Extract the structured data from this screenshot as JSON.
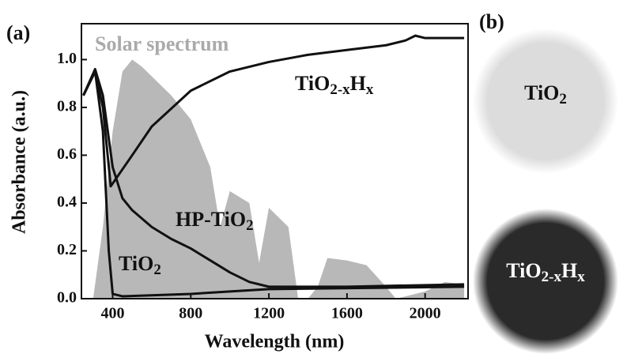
{
  "chart_data": {
    "type": "line",
    "panel_label": "(a)",
    "x_label": "Wavelength (nm)",
    "y_label": "Absorbance (a.u.)",
    "xlim": [
      240,
      2220
    ],
    "ylim": [
      0,
      1.15
    ],
    "xticks": [
      400,
      800,
      1200,
      1600,
      2000
    ],
    "yticks": [
      {
        "value": 0,
        "label": "0.0"
      },
      {
        "value": 0.2,
        "label": "0.2"
      },
      {
        "value": 0.4,
        "label": "0.4"
      },
      {
        "value": 0.6,
        "label": "0.6"
      },
      {
        "value": 0.8,
        "label": "0.8"
      },
      {
        "value": 1.0,
        "label": "1.0"
      }
    ],
    "series": [
      {
        "name": "Solar spectrum",
        "kind": "area",
        "color": "#b8b8b8",
        "x": [
          300,
          350,
          400,
          450,
          500,
          550,
          600,
          700,
          800,
          900,
          950,
          1000,
          1100,
          1150,
          1200,
          1300,
          1350,
          1400,
          1450,
          1500,
          1600,
          1700,
          1800,
          1850,
          2000,
          2100,
          2200
        ],
        "values": [
          0,
          0.3,
          0.7,
          0.95,
          1.0,
          0.97,
          0.93,
          0.85,
          0.75,
          0.55,
          0.3,
          0.45,
          0.4,
          0.15,
          0.38,
          0.3,
          0,
          0,
          0.05,
          0.17,
          0.16,
          0.14,
          0.05,
          0,
          0.03,
          0.07,
          0.06
        ]
      },
      {
        "name_parts": [
          "TiO",
          "2-x",
          "H",
          "x"
        ],
        "kind": "line",
        "color": "#111111",
        "x": [
          250,
          310,
          350,
          390,
          500,
          600,
          800,
          1000,
          1200,
          1400,
          1600,
          1800,
          1900,
          1950,
          2000,
          2200
        ],
        "values": [
          0.85,
          0.95,
          0.8,
          0.47,
          0.6,
          0.72,
          0.87,
          0.95,
          0.99,
          1.02,
          1.04,
          1.06,
          1.08,
          1.1,
          1.09,
          1.09
        ]
      },
      {
        "name_parts": [
          "HP-TiO",
          "2"
        ],
        "kind": "line",
        "color": "#111111",
        "x": [
          250,
          310,
          350,
          400,
          450,
          500,
          600,
          700,
          800,
          900,
          1000,
          1100,
          1200,
          1600,
          2200
        ],
        "values": [
          0.85,
          0.96,
          0.85,
          0.55,
          0.42,
          0.37,
          0.3,
          0.25,
          0.21,
          0.16,
          0.11,
          0.07,
          0.05,
          0.05,
          0.06
        ]
      },
      {
        "name_parts": [
          "TiO",
          "2"
        ],
        "kind": "line",
        "color": "#111111",
        "x": [
          250,
          310,
          350,
          380,
          400,
          450,
          800,
          1200,
          2200
        ],
        "values": [
          0.85,
          0.95,
          0.7,
          0.2,
          0.02,
          0.01,
          0.02,
          0.04,
          0.05
        ]
      }
    ]
  },
  "panel_b": {
    "label": "(b)",
    "samples": [
      {
        "label_parts": [
          "TiO",
          "2"
        ]
      },
      {
        "label_parts": [
          "TiO",
          "2-x",
          "H",
          "x"
        ]
      }
    ]
  }
}
